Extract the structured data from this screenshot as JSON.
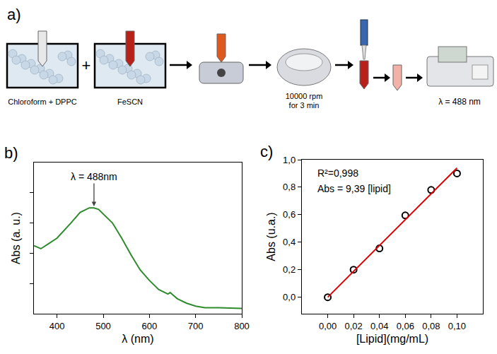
{
  "diagram": {
    "panel": "a)",
    "steps": [
      "Chloroform + DPPC",
      "FeSCN",
      "10000 rpm for 3 min",
      "λ = 488 nm"
    ]
  },
  "chart_data": [
    {
      "panel": "b)",
      "type": "line",
      "xlabel": "λ (nm)",
      "ylabel": "Abs (a. u.)",
      "x": [
        350,
        365,
        380,
        400,
        430,
        450,
        470,
        480,
        490,
        500,
        520,
        540,
        560,
        580,
        600,
        620,
        640,
        645,
        660,
        680,
        700,
        720,
        750,
        800
      ],
      "series": [
        {
          "color": "#2e8b2e",
          "values": [
            0.45,
            0.43,
            0.46,
            0.5,
            0.6,
            0.67,
            0.7,
            0.7,
            0.69,
            0.66,
            0.6,
            0.5,
            0.39,
            0.29,
            0.22,
            0.16,
            0.13,
            0.14,
            0.1,
            0.07,
            0.05,
            0.04,
            0.04,
            0.035
          ]
        }
      ],
      "xlim": [
        350,
        800
      ],
      "xticks": [
        400,
        500,
        600,
        700,
        800
      ],
      "ylim": [
        0,
        1
      ],
      "yticks": [
        0.2,
        0.4,
        0.6,
        0.8
      ],
      "tick_labels": "x",
      "grid": false,
      "annotations": [
        {
          "text": "λ = 488nm",
          "x": 480,
          "y": 0.71
        }
      ]
    },
    {
      "panel": "c)",
      "type": "scatter",
      "xlabel": "[Lipid](mg/mL)",
      "ylabel": "Abs (u.a.)",
      "series": [
        {
          "type": "scatter",
          "marker": "circle-open",
          "color": "#000000",
          "x": [
            0,
            0.02,
            0.04,
            0.06,
            0.08,
            0.1
          ],
          "values": [
            0,
            0.2,
            0.355,
            0.595,
            0.78,
            0.9
          ]
        },
        {
          "type": "line",
          "color": "#e00000",
          "x": [
            0,
            0.1
          ],
          "values": [
            0,
            0.94
          ]
        }
      ],
      "xlim": [
        -0.02,
        0.12
      ],
      "xticks": [
        {
          "value": 0,
          "label": "0,00"
        },
        {
          "value": 0.02,
          "label": "0,02"
        },
        {
          "value": 0.04,
          "label": "0,04"
        },
        {
          "value": 0.06,
          "label": "0,06"
        },
        {
          "value": 0.08,
          "label": "0,08"
        },
        {
          "value": 0.1,
          "label": "0,10"
        }
      ],
      "ylim": [
        -0.12,
        1.0
      ],
      "yticks": [
        {
          "value": 0,
          "label": "0,0"
        },
        {
          "value": 0.2,
          "label": "0,2"
        },
        {
          "value": 0.4,
          "label": "0,4"
        },
        {
          "value": 0.6,
          "label": "0,6"
        },
        {
          "value": 0.8,
          "label": "0,8"
        },
        {
          "value": 1.0,
          "label": "1,0"
        }
      ],
      "grid": false,
      "annotations": [
        "R²=0,998",
        "Abs = 9,39 [lipid]"
      ]
    }
  ]
}
